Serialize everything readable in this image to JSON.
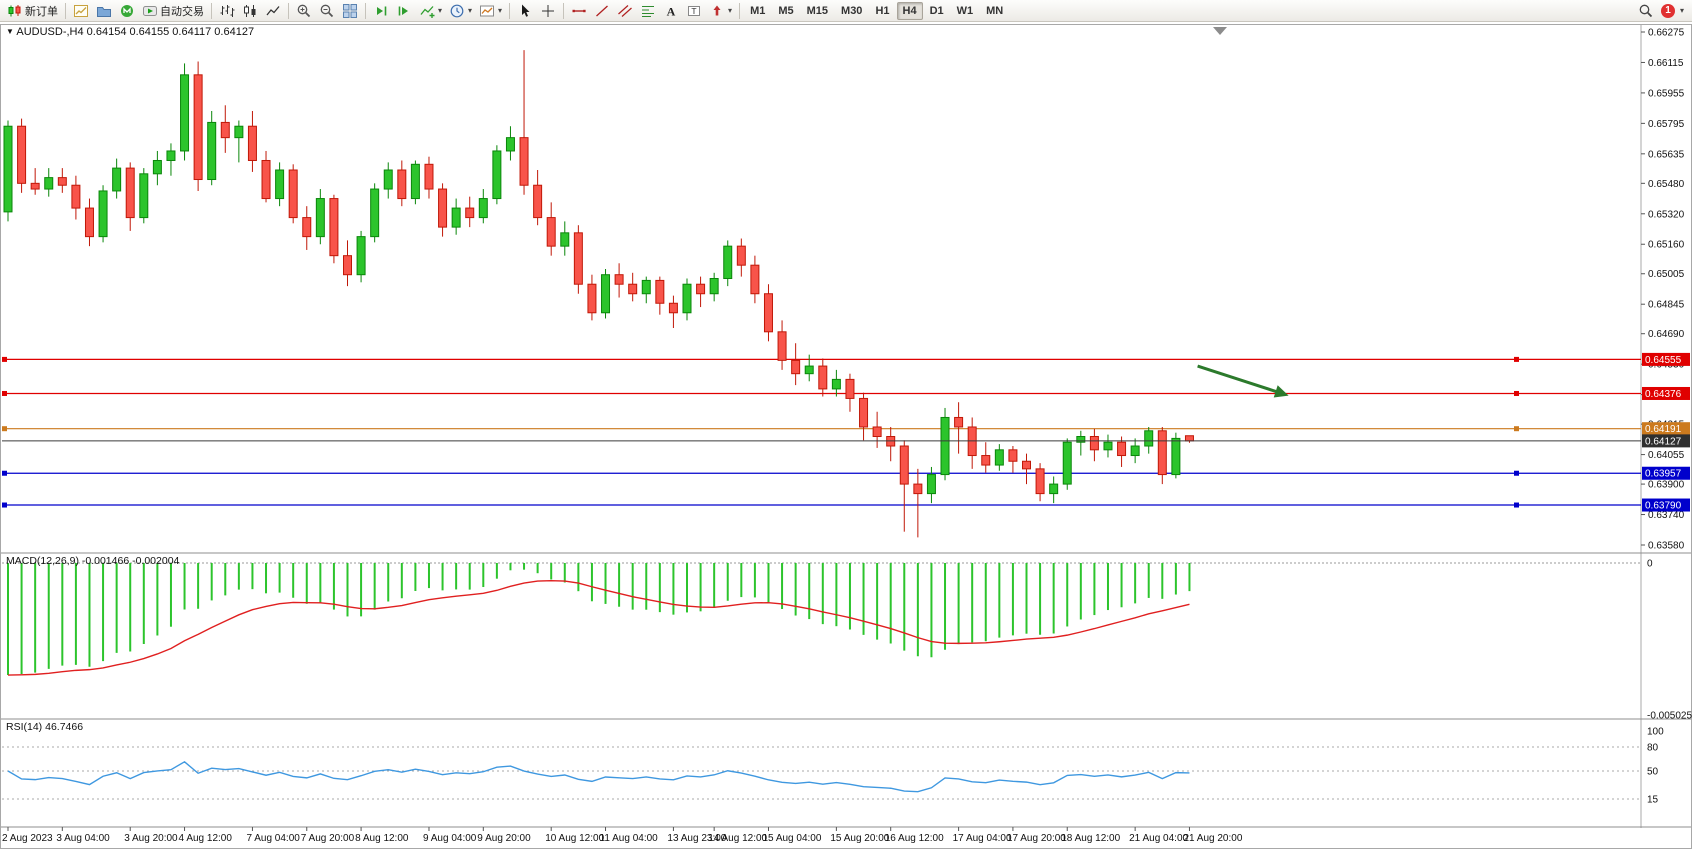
{
  "toolbar": {
    "new_order": "新订单",
    "autotrading": "自动交易",
    "timeframes": [
      "M1",
      "M5",
      "M15",
      "M30",
      "H1",
      "H4",
      "D1",
      "W1",
      "MN"
    ],
    "active_timeframe": "H4",
    "notification_count": "1",
    "icon_buttons": [
      "new-order",
      "new-chart",
      "profiles",
      "metaquotes",
      "autotrading",
      "bar-chart",
      "candlestick-chart",
      "line-chart",
      "zoom-in",
      "zoom-out",
      "tile-windows",
      "auto-scroll",
      "chart-shift",
      "indicators",
      "periods",
      "templates",
      "cursor",
      "crosshair",
      "horizontal-line",
      "trendline",
      "equidistant-channel",
      "fibonacci",
      "text",
      "text-label",
      "arrows",
      "search",
      "notifications"
    ]
  },
  "chart": {
    "symbol_period": "AUDUSD-,H4",
    "ohlc": "0.64154 0.64155 0.64117 0.64127"
  },
  "chart_data": {
    "type": "candlestick",
    "symbol": "AUDUSD",
    "timeframe": "H4",
    "price_range": {
      "top": 0.66275,
      "bottom": 0.6358
    },
    "price_ticks": [
      "0.66275",
      "0.66115",
      "0.65955",
      "0.65795",
      "0.65635",
      "0.65480",
      "0.65320",
      "0.65160",
      "0.65005",
      "0.64845",
      "0.64690",
      "0.64530",
      "0.64370",
      "0.64215",
      "0.64055",
      "0.63900",
      "0.63740",
      "0.63580"
    ],
    "candles": [
      [
        0.6533,
        0.6581,
        0.6528,
        0.6578
      ],
      [
        0.6578,
        0.6582,
        0.6543,
        0.6548
      ],
      [
        0.6548,
        0.6556,
        0.6542,
        0.6545
      ],
      [
        0.6545,
        0.6556,
        0.6541,
        0.6551
      ],
      [
        0.6551,
        0.6556,
        0.6543,
        0.6547
      ],
      [
        0.6547,
        0.6552,
        0.6529,
        0.6535
      ],
      [
        0.6535,
        0.654,
        0.6515,
        0.652
      ],
      [
        0.652,
        0.6547,
        0.6517,
        0.6544
      ],
      [
        0.6544,
        0.6561,
        0.654,
        0.6556
      ],
      [
        0.6556,
        0.6559,
        0.6523,
        0.653
      ],
      [
        0.653,
        0.6556,
        0.6527,
        0.6553
      ],
      [
        0.6553,
        0.6565,
        0.6547,
        0.656
      ],
      [
        0.656,
        0.6569,
        0.6552,
        0.6565
      ],
      [
        0.6565,
        0.6611,
        0.656,
        0.6605
      ],
      [
        0.6605,
        0.6612,
        0.6544,
        0.655
      ],
      [
        0.655,
        0.6586,
        0.6547,
        0.658
      ],
      [
        0.658,
        0.6589,
        0.6564,
        0.6572
      ],
      [
        0.6572,
        0.6581,
        0.6559,
        0.6578
      ],
      [
        0.6578,
        0.6586,
        0.6554,
        0.656
      ],
      [
        0.656,
        0.6565,
        0.6538,
        0.654
      ],
      [
        0.654,
        0.6559,
        0.6536,
        0.6555
      ],
      [
        0.6555,
        0.6558,
        0.6527,
        0.653
      ],
      [
        0.653,
        0.6536,
        0.6513,
        0.652
      ],
      [
        0.652,
        0.6545,
        0.6516,
        0.654
      ],
      [
        0.654,
        0.6542,
        0.6506,
        0.651
      ],
      [
        0.651,
        0.6518,
        0.6494,
        0.65
      ],
      [
        0.65,
        0.6523,
        0.6496,
        0.652
      ],
      [
        0.652,
        0.6548,
        0.6517,
        0.6545
      ],
      [
        0.6545,
        0.6559,
        0.654,
        0.6555
      ],
      [
        0.6555,
        0.656,
        0.6536,
        0.654
      ],
      [
        0.654,
        0.656,
        0.6537,
        0.6558
      ],
      [
        0.6558,
        0.6562,
        0.654,
        0.6545
      ],
      [
        0.6545,
        0.6548,
        0.652,
        0.6525
      ],
      [
        0.6525,
        0.654,
        0.6521,
        0.6535
      ],
      [
        0.6535,
        0.6541,
        0.6525,
        0.653
      ],
      [
        0.653,
        0.6545,
        0.6527,
        0.654
      ],
      [
        0.654,
        0.6568,
        0.6537,
        0.6565
      ],
      [
        0.6565,
        0.6578,
        0.656,
        0.6572
      ],
      [
        0.6572,
        0.6618,
        0.6542,
        0.6547
      ],
      [
        0.6547,
        0.6555,
        0.6526,
        0.653
      ],
      [
        0.653,
        0.6538,
        0.651,
        0.6515
      ],
      [
        0.6515,
        0.6528,
        0.651,
        0.6522
      ],
      [
        0.6522,
        0.6526,
        0.649,
        0.6495
      ],
      [
        0.6495,
        0.65,
        0.6476,
        0.648
      ],
      [
        0.648,
        0.6503,
        0.6477,
        0.65
      ],
      [
        0.65,
        0.6506,
        0.6488,
        0.6495
      ],
      [
        0.6495,
        0.6501,
        0.6486,
        0.649
      ],
      [
        0.649,
        0.6499,
        0.6485,
        0.6497
      ],
      [
        0.6497,
        0.6499,
        0.6479,
        0.6485
      ],
      [
        0.6485,
        0.6489,
        0.6472,
        0.648
      ],
      [
        0.648,
        0.6498,
        0.6476,
        0.6495
      ],
      [
        0.6495,
        0.6499,
        0.6483,
        0.649
      ],
      [
        0.649,
        0.6501,
        0.6486,
        0.6498
      ],
      [
        0.6498,
        0.6518,
        0.6494,
        0.6515
      ],
      [
        0.6515,
        0.6519,
        0.6499,
        0.6505
      ],
      [
        0.6505,
        0.651,
        0.6485,
        0.649
      ],
      [
        0.649,
        0.6495,
        0.6465,
        0.647
      ],
      [
        0.647,
        0.6476,
        0.645,
        0.6455
      ],
      [
        0.6455,
        0.6464,
        0.6442,
        0.6448
      ],
      [
        0.6448,
        0.6458,
        0.6444,
        0.6452
      ],
      [
        0.6452,
        0.6456,
        0.6436,
        0.644
      ],
      [
        0.644,
        0.645,
        0.6436,
        0.6445
      ],
      [
        0.6445,
        0.6448,
        0.6428,
        0.6435
      ],
      [
        0.6435,
        0.6438,
        0.6413,
        0.642
      ],
      [
        0.642,
        0.6428,
        0.6409,
        0.6415
      ],
      [
        0.6415,
        0.642,
        0.6402,
        0.641
      ],
      [
        0.641,
        0.6413,
        0.6365,
        0.639
      ],
      [
        0.639,
        0.6398,
        0.6362,
        0.6385
      ],
      [
        0.6385,
        0.6399,
        0.638,
        0.6395
      ],
      [
        0.6395,
        0.643,
        0.6392,
        0.6425
      ],
      [
        0.6425,
        0.6433,
        0.6406,
        0.642
      ],
      [
        0.642,
        0.6425,
        0.6398,
        0.6405
      ],
      [
        0.6405,
        0.6412,
        0.6396,
        0.64
      ],
      [
        0.64,
        0.6411,
        0.6397,
        0.6408
      ],
      [
        0.6408,
        0.641,
        0.6396,
        0.6402
      ],
      [
        0.6402,
        0.6406,
        0.639,
        0.6398
      ],
      [
        0.6398,
        0.6401,
        0.6381,
        0.6385
      ],
      [
        0.6385,
        0.6394,
        0.638,
        0.639
      ],
      [
        0.639,
        0.6414,
        0.6387,
        0.6412
      ],
      [
        0.6412,
        0.6418,
        0.6405,
        0.6415
      ],
      [
        0.6415,
        0.6419,
        0.6402,
        0.6408
      ],
      [
        0.6408,
        0.6416,
        0.6404,
        0.6412
      ],
      [
        0.6412,
        0.6415,
        0.6399,
        0.6405
      ],
      [
        0.6405,
        0.6414,
        0.6401,
        0.641
      ],
      [
        0.641,
        0.642,
        0.6406,
        0.6418
      ],
      [
        0.6418,
        0.642,
        0.639,
        0.6395
      ],
      [
        0.6395,
        0.6417,
        0.6393,
        0.6414
      ],
      [
        0.64154,
        0.64155,
        0.64117,
        0.64127
      ]
    ],
    "time_labels": [
      {
        "label": "2 Aug 2023",
        "candle": 0
      },
      {
        "label": "3 Aug 04:00",
        "candle": 4
      },
      {
        "label": "3 Aug 20:00",
        "candle": 9
      },
      {
        "label": "4 Aug 12:00",
        "candle": 13
      },
      {
        "label": "7 Aug 04:00",
        "candle": 18
      },
      {
        "label": "7 Aug 20:00",
        "candle": 22
      },
      {
        "label": "8 Aug 12:00",
        "candle": 26
      },
      {
        "label": "9 Aug 04:00",
        "candle": 31
      },
      {
        "label": "9 Aug 20:00",
        "candle": 35
      },
      {
        "label": "10 Aug 12:00",
        "candle": 40
      },
      {
        "label": "11 Aug 04:00",
        "candle": 44
      },
      {
        "label": "13 Aug 23:00",
        "candle": 49
      },
      {
        "label": "14 Aug 12:00",
        "candle": 52
      },
      {
        "label": "15 Aug 04:00",
        "candle": 56
      },
      {
        "label": "15 Aug 20:00",
        "candle": 61
      },
      {
        "label": "16 Aug 12:00",
        "candle": 65
      },
      {
        "label": "17 Aug 04:00",
        "candle": 70
      },
      {
        "label": "17 Aug 20:00",
        "candle": 74
      },
      {
        "label": "18 Aug 12:00",
        "candle": 78
      },
      {
        "label": "21 Aug 04:00",
        "candle": 83
      },
      {
        "label": "21 Aug 20:00",
        "candle": 87
      }
    ],
    "hlines": [
      {
        "price": 0.64555,
        "label": "0.64555",
        "color": "#e00000"
      },
      {
        "price": 0.64376,
        "label": "0.64376",
        "color": "#e00000"
      },
      {
        "price": 0.64191,
        "label": "0.64191",
        "color": "#cc7a1e"
      },
      {
        "price": 0.63957,
        "label": "0.63957",
        "color": "#0000cc"
      },
      {
        "price": 0.6379,
        "label": "0.63790",
        "color": "#0000cc"
      }
    ],
    "bid_line": {
      "price": 0.64127,
      "label": "0.64127",
      "color": "#3a3a3a",
      "badge_color": "#2f2f2f"
    },
    "arrow_object": {
      "from_candle": 87.6,
      "from_price": 0.6452,
      "to_candle": 94.3,
      "to_price": 0.64365,
      "color": "#2c7a2c"
    },
    "indicators": {
      "macd": {
        "name": "MACD(12,26,9)",
        "values": "-0.001466 -0.002004",
        "fast": 12,
        "slow": 26,
        "signal_period": 9,
        "scale_top": "0",
        "scale_bottom": "-0.005025",
        "scale_min": -0.005025,
        "histogram_color": "#2cc42c",
        "signal_color": "#e02020"
      },
      "rsi": {
        "name": "RSI(14)",
        "value": "46.7466",
        "period": 14,
        "levels": [
          80,
          50,
          15
        ],
        "scale_labels": [
          "100",
          "80",
          "50",
          "15"
        ],
        "line_color": "#3f98e0"
      }
    },
    "colors": {
      "bull": "#2cc42c",
      "bull_border": "#0a860a",
      "bear": "#f8544a",
      "bear_border": "#c01808",
      "frame": "#a8a8a8",
      "divider": "#8f8f8f",
      "grid": "#999999"
    }
  }
}
